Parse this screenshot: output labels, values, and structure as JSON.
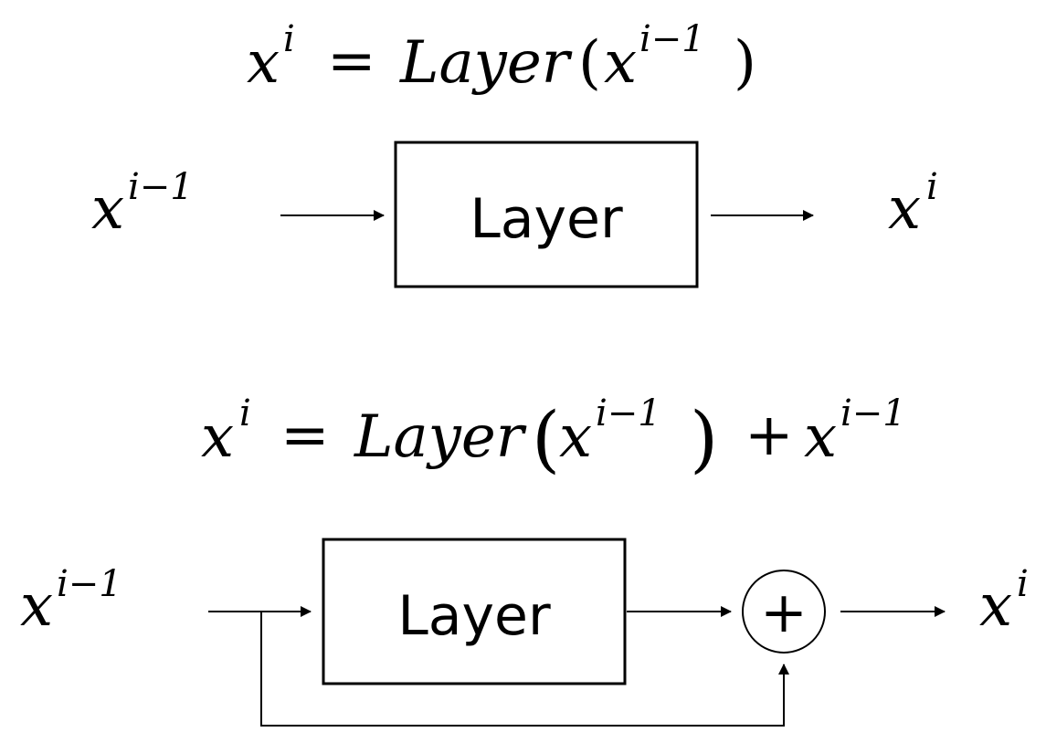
{
  "colors": {
    "background": "#ffffff",
    "ink": "#000000"
  },
  "equation_1": {
    "x": "x",
    "sup_i": "i",
    "equals": "=",
    "func": "Layer",
    "open_paren": "(",
    "arg_x": "x",
    "arg_sup": "i−1",
    "close_paren": ")"
  },
  "diagram_1": {
    "input_x": "x",
    "input_sup": "i−1",
    "layer_label": "Layer",
    "output_x": "x",
    "output_sup": "i"
  },
  "equation_2": {
    "x": "x",
    "sup_i": "i",
    "equals": "=",
    "func": "Layer",
    "open_paren": "(",
    "arg_x": "x",
    "arg_sup": "i−1",
    "close_paren": ")",
    "plus": "+",
    "res_x": "x",
    "res_sup": "i−1"
  },
  "diagram_2": {
    "input_x": "x",
    "input_sup": "i−1",
    "layer_label": "Layer",
    "sum_symbol": "+",
    "output_x": "x",
    "output_sup": "i"
  }
}
